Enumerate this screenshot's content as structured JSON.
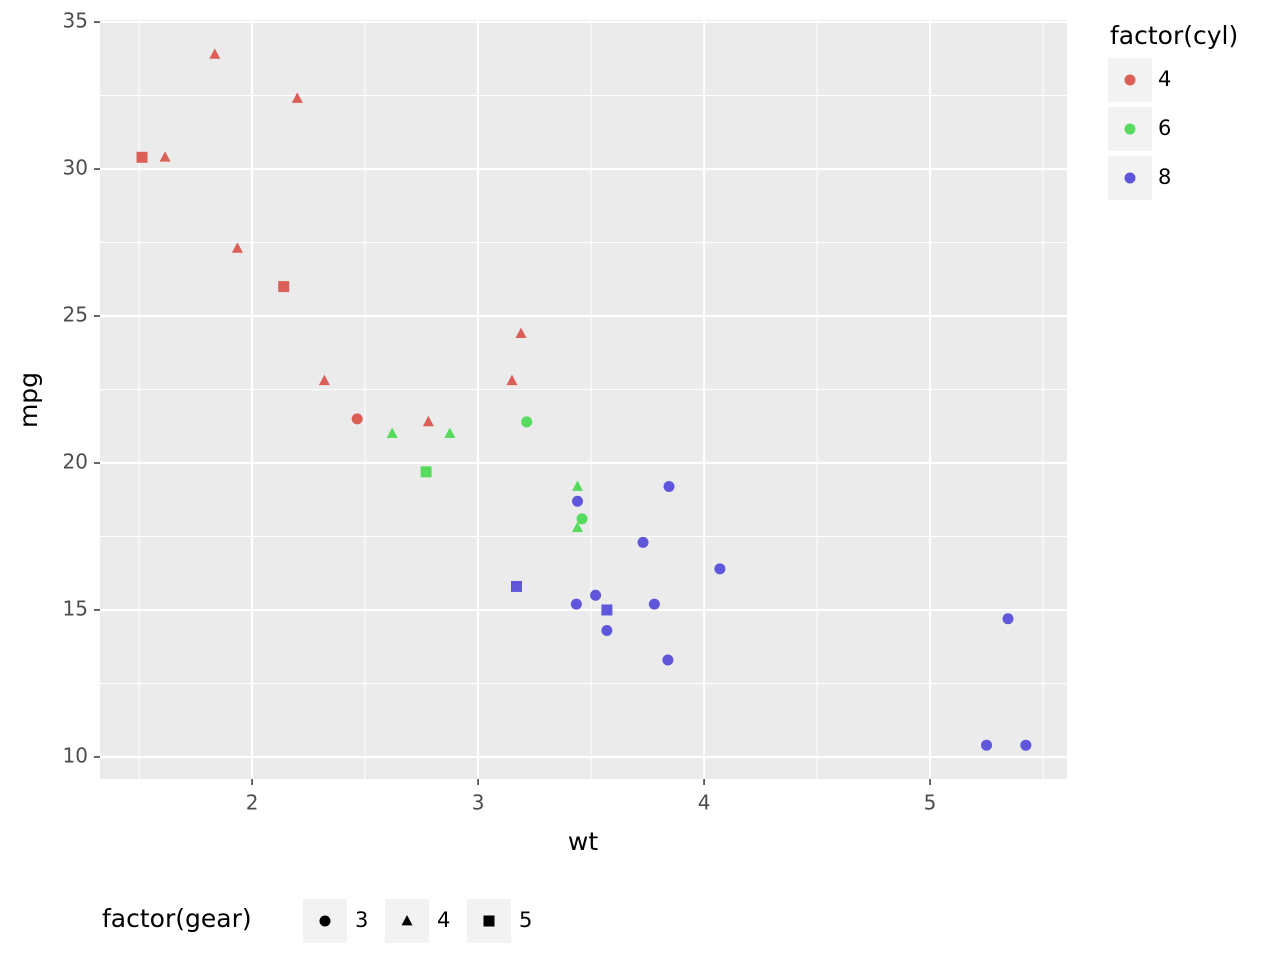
{
  "chart_data": {
    "type": "scatter",
    "x_label": "wt",
    "y_label": "mpg",
    "x": [
      2.62,
      2.875,
      2.32,
      3.215,
      3.44,
      3.46,
      3.57,
      3.19,
      3.15,
      3.44,
      3.44,
      4.07,
      3.73,
      3.78,
      5.25,
      5.424,
      5.345,
      2.2,
      1.615,
      1.835,
      2.465,
      3.52,
      3.435,
      3.84,
      3.845,
      1.935,
      2.14,
      1.513,
      3.17,
      2.77,
      3.57,
      2.78
    ],
    "y": [
      21.0,
      21.0,
      22.8,
      21.4,
      18.7,
      18.1,
      14.3,
      24.4,
      22.8,
      19.2,
      17.8,
      16.4,
      17.3,
      15.2,
      10.4,
      10.4,
      14.7,
      32.4,
      30.4,
      33.9,
      21.5,
      15.5,
      15.2,
      13.3,
      19.2,
      27.3,
      26.0,
      30.4,
      15.8,
      19.7,
      15.0,
      21.4
    ],
    "cyl": [
      6,
      6,
      4,
      6,
      8,
      6,
      8,
      4,
      4,
      6,
      6,
      8,
      8,
      8,
      8,
      8,
      8,
      4,
      4,
      4,
      4,
      8,
      8,
      8,
      8,
      4,
      4,
      4,
      8,
      6,
      8,
      4
    ],
    "gear": [
      4,
      4,
      4,
      3,
      3,
      3,
      3,
      4,
      4,
      4,
      4,
      3,
      3,
      3,
      3,
      3,
      3,
      4,
      4,
      4,
      3,
      3,
      3,
      3,
      3,
      4,
      5,
      5,
      5,
      5,
      5,
      4
    ],
    "color_legend": {
      "title": "factor(cyl)",
      "levels": [
        4,
        6,
        8
      ],
      "colors": [
        "#db5f57",
        "#57db5f",
        "#5f57db"
      ]
    },
    "shape_legend": {
      "title": "factor(gear)",
      "levels": [
        3,
        4,
        5
      ],
      "shapes": [
        "circle",
        "triangle",
        "square"
      ]
    },
    "xlim": [
      1.327,
      5.606
    ],
    "ylim": [
      9.25,
      35.07
    ],
    "xticks": [
      2,
      3,
      4,
      5
    ],
    "yticks": [
      10,
      15,
      20,
      25,
      30,
      35
    ],
    "x_minor_ticks": [
      1.5,
      2.5,
      3.5,
      4.5,
      5.5
    ],
    "y_minor_ticks": [
      12.5,
      17.5,
      22.5,
      27.5,
      32.5
    ],
    "grid": true
  }
}
